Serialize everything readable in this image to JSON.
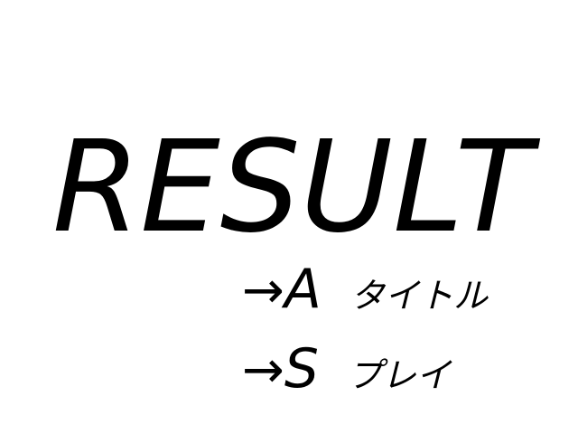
{
  "screen": {
    "title": "RESULT"
  },
  "menu": {
    "options": [
      {
        "arrow": "→",
        "key": "A",
        "label": "タイトル"
      },
      {
        "arrow": "→",
        "key": "S",
        "label": "プレイ"
      }
    ]
  }
}
